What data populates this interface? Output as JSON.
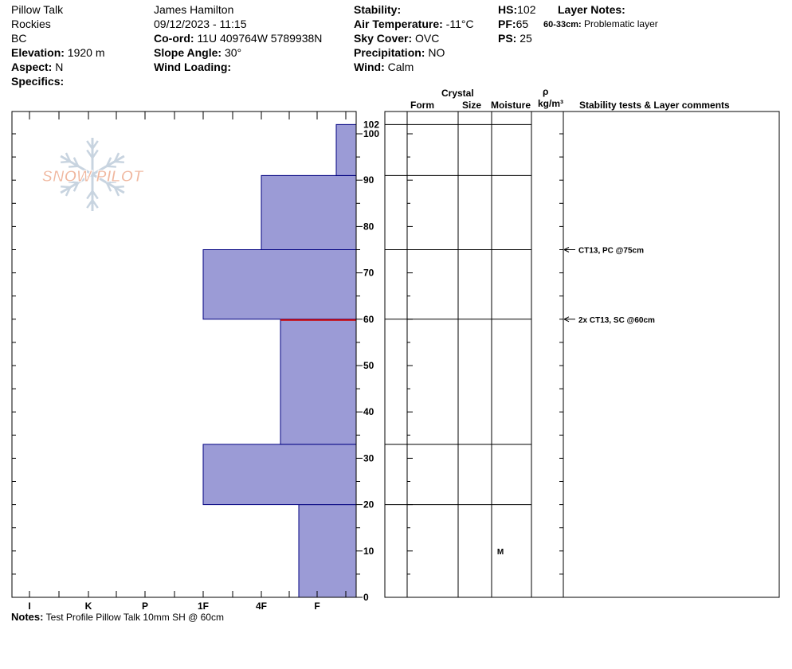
{
  "header": {
    "col1": {
      "location": "Pillow Talk",
      "range": "Rockies",
      "state": "BC",
      "elevation_label": "Elevation:",
      "elevation_value": "1920 m",
      "aspect_label": "Aspect:",
      "aspect_value": "N",
      "specifics_label": "Specifics:"
    },
    "col2": {
      "observer": "James Hamilton",
      "datetime": "09/12/2023 - 11:15",
      "coord_label": "Co-ord:",
      "coord_value": "11U 409764W 5789938N",
      "slope_label": "Slope Angle:",
      "slope_value": "30°",
      "wind_loading_label": "Wind Loading:"
    },
    "col3": {
      "stability_label": "Stability:",
      "air_temp_label": "Air Temperature:",
      "air_temp_value": "-11°C",
      "sky_label": "Sky Cover:",
      "sky_value": "OVC",
      "precip_label": "Precipitation:",
      "precip_value": "NO",
      "wind_label": "Wind:",
      "wind_value": "Calm"
    },
    "col4": {
      "hs_label": "HS:",
      "hs_value": "102",
      "pf_label": "PF:",
      "pf_value": "65",
      "ps_label": "PS:",
      "ps_value": "25",
      "layer_notes_label": "Layer Notes:",
      "layer_note_range": "60-33cm:",
      "layer_note_text": "Problematic layer"
    }
  },
  "logo": {
    "text": "SNOW PILOT",
    "color": "#f0b8a0",
    "flake_color": "#c8d4e0"
  },
  "columns": {
    "crystal": "Crystal",
    "form": "Form",
    "size": "Size",
    "moisture": "Moisture",
    "rho": "ρ",
    "density_unit": "kg/m³",
    "comments": "Stability tests & Layer comments"
  },
  "notes": {
    "label": "Notes:",
    "text": "Test Profile Pillow Talk 10mm SH @ 60cm"
  },
  "chart_data": {
    "type": "bar",
    "orientation": "horizontal-step",
    "x_categories": [
      "I",
      "K",
      "P",
      "1F",
      "4F",
      "F"
    ],
    "y_axis": {
      "label": "",
      "min": 0,
      "max": 105,
      "ticks": [
        0,
        10,
        20,
        30,
        40,
        50,
        60,
        70,
        80,
        90,
        100
      ],
      "extra_tick": "102",
      "unit": "cm"
    },
    "fill_color": "#9b9bd6",
    "stroke_color": "#000080",
    "weak_layer_color": "#cc0000",
    "weak_layer_height": 60,
    "layers": [
      {
        "bottom": 0,
        "top": 20,
        "hardness": "F+"
      },
      {
        "bottom": 20,
        "top": 33,
        "hardness": "1F"
      },
      {
        "bottom": 33,
        "top": 60,
        "hardness": "4F-"
      },
      {
        "bottom": 60,
        "top": 75,
        "hardness": "1F"
      },
      {
        "bottom": 75,
        "top": 91,
        "hardness": "4F"
      },
      {
        "bottom": 91,
        "top": 102,
        "hardness": "F-"
      }
    ],
    "layer_boundaries": [
      20,
      33,
      60,
      75,
      91,
      102
    ],
    "moisture": [
      {
        "height": 10,
        "value": "M"
      }
    ],
    "comments": [
      {
        "height": 75,
        "text": "CT13, PC @75cm"
      },
      {
        "height": 60,
        "text": "2x CT13, SC @60cm"
      }
    ]
  }
}
